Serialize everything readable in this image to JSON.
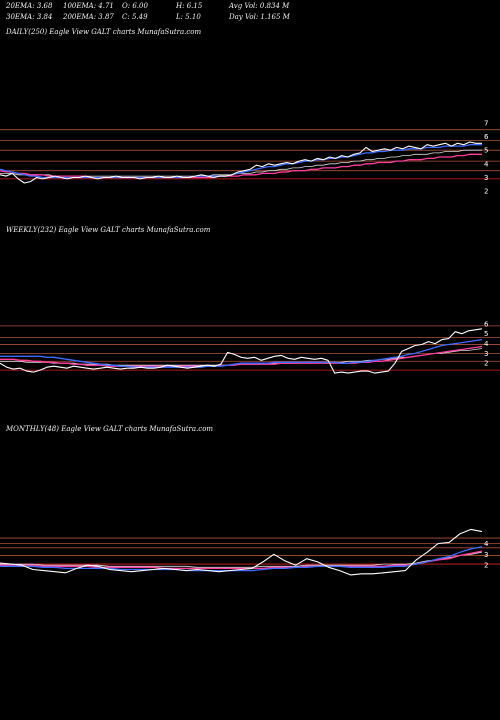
{
  "header": {
    "ema20": "20EMA: 3.68",
    "ema100": "100EMA: 4.71",
    "open": "O: 6.00",
    "high": "H: 6.15",
    "avg_vol": "Avg Vol: 0.834  M",
    "ema30": "30EMA: 3.84",
    "ema200": "200EMA: 3.87",
    "close": "C: 5.49",
    "low": "L: 5.10",
    "day_vol": "Day Vol: 1.165 M"
  },
  "colors": {
    "background": "#000000",
    "price": "#ffffff",
    "ema_fast": "#3b6bff",
    "ema_mid": "#ff3fa0",
    "ema_slow": "#d9d9d9",
    "ref_line": "#b0503a",
    "ref_line_red": "#e02020"
  },
  "chart_data": [
    {
      "type": "line",
      "title": "DAILY(250) Eagle  View  GALT charts MunafaSutra.com",
      "y_ticks": [
        "7",
        "6",
        "5",
        "4",
        "3",
        "2"
      ],
      "ylim": [
        1.5,
        7.5
      ],
      "ref_levels": [
        6.5,
        5.7,
        5.0,
        4.2,
        3.5,
        2.9
      ],
      "series": [
        {
          "key": "price",
          "values": [
            3.2,
            3.1,
            3.3,
            2.9,
            2.6,
            2.7,
            3.0,
            2.9,
            3.0,
            3.1,
            3.0,
            2.9,
            3.0,
            3.0,
            3.1,
            3.0,
            2.9,
            3.0,
            3.0,
            3.1,
            3.0,
            3.0,
            3.0,
            2.9,
            3.0,
            3.0,
            3.1,
            3.0,
            3.0,
            3.1,
            3.0,
            3.0,
            3.1,
            3.2,
            3.1,
            3.0,
            3.1,
            3.1,
            3.2,
            3.4,
            3.5,
            3.6,
            3.9,
            3.8,
            4.0,
            3.9,
            4.0,
            4.1,
            4.0,
            4.2,
            4.3,
            4.2,
            4.4,
            4.3,
            4.5,
            4.4,
            4.6,
            4.5,
            4.7,
            4.8,
            5.2,
            4.9,
            5.0,
            5.1,
            5.0,
            5.2,
            5.1,
            5.3,
            5.2,
            5.1,
            5.4,
            5.3,
            5.4,
            5.5,
            5.3,
            5.5,
            5.4,
            5.6,
            5.5,
            5.5
          ]
        },
        {
          "key": "ema_fast",
          "values": [
            3.6,
            3.5,
            3.4,
            3.3,
            3.2,
            3.1,
            3.1,
            3.0,
            3.0,
            3.0,
            3.0,
            3.0,
            3.0,
            3.0,
            3.0,
            3.0,
            3.0,
            3.0,
            3.0,
            3.0,
            3.0,
            3.0,
            3.0,
            3.0,
            3.0,
            3.0,
            3.0,
            3.0,
            3.0,
            3.0,
            3.0,
            3.0,
            3.1,
            3.1,
            3.1,
            3.1,
            3.1,
            3.1,
            3.2,
            3.3,
            3.4,
            3.5,
            3.6,
            3.7,
            3.8,
            3.8,
            3.9,
            4.0,
            4.0,
            4.1,
            4.2,
            4.2,
            4.3,
            4.3,
            4.4,
            4.4,
            4.5,
            4.5,
            4.6,
            4.7,
            4.8,
            4.8,
            4.9,
            4.9,
            5.0,
            5.0,
            5.0,
            5.1,
            5.1,
            5.1,
            5.2,
            5.2,
            5.2,
            5.3,
            5.3,
            5.3,
            5.3,
            5.4,
            5.4,
            5.4
          ]
        },
        {
          "key": "ema_mid",
          "values": [
            3.5,
            3.4,
            3.4,
            3.3,
            3.3,
            3.2,
            3.2,
            3.2,
            3.1,
            3.1,
            3.1,
            3.1,
            3.1,
            3.1,
            3.1,
            3.0,
            3.0,
            3.0,
            3.0,
            3.0,
            3.0,
            3.0,
            3.0,
            3.0,
            3.0,
            3.0,
            3.0,
            3.0,
            3.0,
            3.0,
            3.0,
            3.0,
            3.0,
            3.0,
            3.0,
            3.0,
            3.1,
            3.1,
            3.1,
            3.1,
            3.2,
            3.2,
            3.2,
            3.3,
            3.3,
            3.3,
            3.4,
            3.4,
            3.5,
            3.5,
            3.5,
            3.6,
            3.6,
            3.7,
            3.7,
            3.7,
            3.8,
            3.8,
            3.9,
            3.9,
            4.0,
            4.0,
            4.1,
            4.1,
            4.1,
            4.2,
            4.2,
            4.3,
            4.3,
            4.3,
            4.4,
            4.4,
            4.5,
            4.5,
            4.5,
            4.6,
            4.6,
            4.7,
            4.7,
            4.7
          ]
        },
        {
          "key": "ema_slow",
          "values": [
            3.3,
            3.3,
            3.3,
            3.2,
            3.2,
            3.2,
            3.2,
            3.2,
            3.2,
            3.1,
            3.1,
            3.1,
            3.1,
            3.1,
            3.1,
            3.1,
            3.1,
            3.1,
            3.1,
            3.1,
            3.1,
            3.1,
            3.1,
            3.1,
            3.1,
            3.1,
            3.1,
            3.1,
            3.1,
            3.1,
            3.1,
            3.1,
            3.1,
            3.1,
            3.1,
            3.2,
            3.2,
            3.2,
            3.2,
            3.3,
            3.3,
            3.3,
            3.4,
            3.4,
            3.5,
            3.5,
            3.6,
            3.6,
            3.7,
            3.7,
            3.8,
            3.8,
            3.9,
            3.9,
            4.0,
            4.0,
            4.1,
            4.1,
            4.2,
            4.2,
            4.3,
            4.3,
            4.4,
            4.4,
            4.5,
            4.5,
            4.6,
            4.6,
            4.7,
            4.7,
            4.7,
            4.8,
            4.8,
            4.9,
            4.9,
            4.9,
            5.0,
            5.0,
            5.0,
            5.0
          ]
        }
      ]
    },
    {
      "type": "line",
      "title": "WEEKLY(232) Eagle  View  GALT charts MunafaSutra.com",
      "y_ticks": [
        "6",
        "5",
        "4",
        "3",
        "2"
      ],
      "ylim": [
        0.5,
        6.8
      ],
      "ref_levels": [
        5.8,
        4.6,
        3.9,
        3.0,
        2.2,
        1.3
      ],
      "series": [
        {
          "key": "price",
          "values": [
            2.0,
            1.6,
            1.4,
            1.5,
            1.2,
            1.1,
            1.3,
            1.6,
            1.7,
            1.6,
            1.5,
            1.7,
            1.6,
            1.5,
            1.4,
            1.5,
            1.6,
            1.5,
            1.4,
            1.5,
            1.5,
            1.6,
            1.5,
            1.5,
            1.6,
            1.8,
            1.7,
            1.6,
            1.5,
            1.6,
            1.7,
            1.8,
            1.7,
            1.9,
            3.1,
            2.9,
            2.6,
            2.5,
            2.6,
            2.3,
            2.5,
            2.7,
            2.8,
            2.5,
            2.4,
            2.6,
            2.5,
            2.4,
            2.5,
            2.3,
            1.0,
            1.1,
            1.0,
            1.1,
            1.2,
            1.2,
            1.0,
            1.1,
            1.2,
            2.0,
            3.2,
            3.5,
            3.8,
            3.9,
            4.2,
            4.0,
            4.4,
            4.5,
            5.2,
            5.0,
            5.3,
            5.4,
            5.5
          ]
        },
        {
          "key": "ema_fast",
          "values": [
            2.7,
            2.7,
            2.7,
            2.7,
            2.7,
            2.7,
            2.7,
            2.6,
            2.6,
            2.5,
            2.4,
            2.3,
            2.2,
            2.1,
            2.0,
            1.9,
            1.8,
            1.8,
            1.7,
            1.7,
            1.6,
            1.6,
            1.6,
            1.6,
            1.6,
            1.6,
            1.6,
            1.6,
            1.6,
            1.6,
            1.6,
            1.7,
            1.7,
            1.7,
            1.8,
            1.9,
            2.0,
            2.0,
            2.0,
            2.0,
            2.0,
            2.1,
            2.1,
            2.1,
            2.1,
            2.1,
            2.1,
            2.1,
            2.1,
            2.1,
            2.1,
            2.0,
            2.0,
            2.1,
            2.1,
            2.2,
            2.3,
            2.4,
            2.5,
            2.6,
            2.7,
            2.9,
            3.0,
            3.2,
            3.4,
            3.6,
            3.8,
            3.9,
            4.0,
            4.1,
            4.2,
            4.3,
            4.4
          ]
        },
        {
          "key": "ema_mid",
          "values": [
            2.4,
            2.4,
            2.4,
            2.3,
            2.3,
            2.2,
            2.2,
            2.1,
            2.1,
            2.0,
            2.0,
            1.9,
            1.9,
            1.8,
            1.8,
            1.8,
            1.7,
            1.7,
            1.7,
            1.7,
            1.7,
            1.7,
            1.7,
            1.7,
            1.7,
            1.7,
            1.7,
            1.7,
            1.7,
            1.7,
            1.7,
            1.7,
            1.7,
            1.8,
            1.8,
            1.8,
            1.9,
            1.9,
            1.9,
            1.9,
            1.9,
            1.9,
            2.0,
            2.0,
            2.0,
            2.0,
            2.0,
            2.0,
            2.0,
            2.0,
            2.0,
            2.0,
            2.0,
            2.0,
            2.1,
            2.1,
            2.2,
            2.2,
            2.3,
            2.4,
            2.5,
            2.6,
            2.7,
            2.8,
            2.9,
            3.0,
            3.1,
            3.2,
            3.3,
            3.4,
            3.5,
            3.6,
            3.7
          ]
        },
        {
          "key": "ema_slow",
          "values": [
            2.2,
            2.2,
            2.2,
            2.2,
            2.1,
            2.1,
            2.1,
            2.1,
            2.0,
            2.0,
            2.0,
            2.0,
            1.9,
            1.9,
            1.9,
            1.9,
            1.9,
            1.8,
            1.8,
            1.8,
            1.8,
            1.8,
            1.8,
            1.8,
            1.8,
            1.8,
            1.8,
            1.8,
            1.8,
            1.8,
            1.8,
            1.8,
            1.8,
            1.8,
            1.8,
            1.9,
            1.9,
            1.9,
            1.9,
            1.9,
            2.0,
            2.0,
            2.0,
            2.0,
            2.0,
            2.0,
            2.1,
            2.1,
            2.1,
            2.1,
            2.1,
            2.1,
            2.2,
            2.2,
            2.2,
            2.3,
            2.3,
            2.4,
            2.4,
            2.5,
            2.6,
            2.6,
            2.7,
            2.8,
            2.9,
            3.0,
            3.0,
            3.1,
            3.2,
            3.3,
            3.3,
            3.4,
            3.5
          ]
        }
      ]
    },
    {
      "type": "line",
      "title": "MONTHLY(48) Eagle  View  GALT charts MunafaSutra.com",
      "y_ticks": [
        "4",
        "3",
        "2"
      ],
      "ylim": [
        1.0,
        5.8
      ],
      "ref_levels": [
        4.5,
        4.0,
        3.6,
        2.9,
        2.1
      ],
      "series": [
        {
          "key": "price",
          "values": [
            2.2,
            2.1,
            2.0,
            1.6,
            1.5,
            1.4,
            1.3,
            1.7,
            2.0,
            1.9,
            1.6,
            1.5,
            1.4,
            1.5,
            1.6,
            1.7,
            1.6,
            1.5,
            1.6,
            1.5,
            1.4,
            1.5,
            1.6,
            1.7,
            2.3,
            3.0,
            2.4,
            2.0,
            2.6,
            2.3,
            1.8,
            1.5,
            1.1,
            1.2,
            1.2,
            1.3,
            1.4,
            1.5,
            2.5,
            3.2,
            4.0,
            4.1,
            4.9,
            5.3,
            5.1
          ]
        },
        {
          "key": "ema_fast",
          "values": [
            1.9,
            1.9,
            1.9,
            1.9,
            1.8,
            1.8,
            1.7,
            1.7,
            1.7,
            1.7,
            1.7,
            1.6,
            1.6,
            1.6,
            1.6,
            1.6,
            1.6,
            1.5,
            1.5,
            1.5,
            1.5,
            1.5,
            1.5,
            1.5,
            1.6,
            1.7,
            1.7,
            1.8,
            1.8,
            1.9,
            1.9,
            1.9,
            1.8,
            1.8,
            1.8,
            1.8,
            1.9,
            1.9,
            2.1,
            2.3,
            2.6,
            2.8,
            3.2,
            3.5,
            3.7
          ]
        },
        {
          "key": "ema_mid",
          "values": [
            2.0,
            2.0,
            2.0,
            2.0,
            1.9,
            1.9,
            1.9,
            1.9,
            1.9,
            1.8,
            1.8,
            1.8,
            1.8,
            1.8,
            1.8,
            1.7,
            1.7,
            1.7,
            1.7,
            1.7,
            1.7,
            1.7,
            1.7,
            1.7,
            1.7,
            1.8,
            1.8,
            1.8,
            1.9,
            1.9,
            1.9,
            1.9,
            1.9,
            1.9,
            1.9,
            1.9,
            2.0,
            2.0,
            2.1,
            2.3,
            2.5,
            2.6,
            2.9,
            3.1,
            3.3
          ]
        },
        {
          "key": "ema_slow",
          "values": [
            2.1,
            2.1,
            2.1,
            2.1,
            2.0,
            2.0,
            2.0,
            2.0,
            2.0,
            2.0,
            1.9,
            1.9,
            1.9,
            1.9,
            1.9,
            1.9,
            1.9,
            1.9,
            1.8,
            1.8,
            1.8,
            1.8,
            1.8,
            1.8,
            1.9,
            1.9,
            1.9,
            1.9,
            2.0,
            2.0,
            2.0,
            2.0,
            2.0,
            2.0,
            2.0,
            2.1,
            2.1,
            2.1,
            2.2,
            2.4,
            2.5,
            2.7,
            2.9,
            3.0,
            3.2
          ]
        }
      ]
    }
  ]
}
